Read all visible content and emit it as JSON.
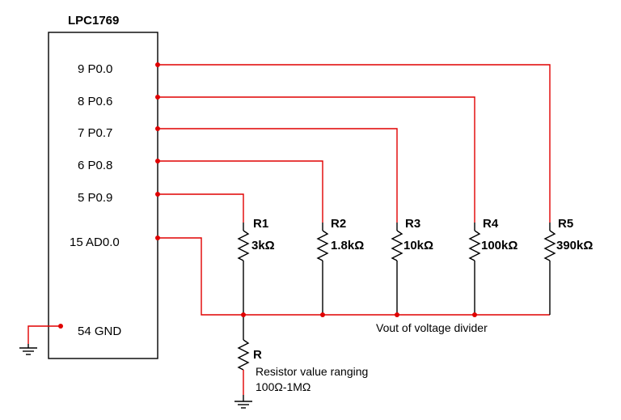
{
  "chip": {
    "name": "LPC1769",
    "pins": [
      {
        "label": "9 P0.0"
      },
      {
        "label": "8 P0.6"
      },
      {
        "label": "7 P0.7"
      },
      {
        "label": "6 P0.8"
      },
      {
        "label": "5 P0.9"
      },
      {
        "label": "15 AD0.0"
      },
      {
        "label": "54 GND"
      }
    ]
  },
  "resistors": [
    {
      "name": "R1",
      "value": "3kΩ"
    },
    {
      "name": "R2",
      "value": "1.8kΩ"
    },
    {
      "name": "R3",
      "value": "10kΩ"
    },
    {
      "name": "R4",
      "value": "100kΩ"
    },
    {
      "name": "R5",
      "value": "390kΩ"
    }
  ],
  "bottom_resistor": {
    "name": "R",
    "note_line1": "Resistor value ranging",
    "note_line2": "100Ω-1MΩ"
  },
  "labels": {
    "vout": "Vout of voltage divider"
  },
  "colors": {
    "wire": "#e00000",
    "component": "#000000"
  }
}
